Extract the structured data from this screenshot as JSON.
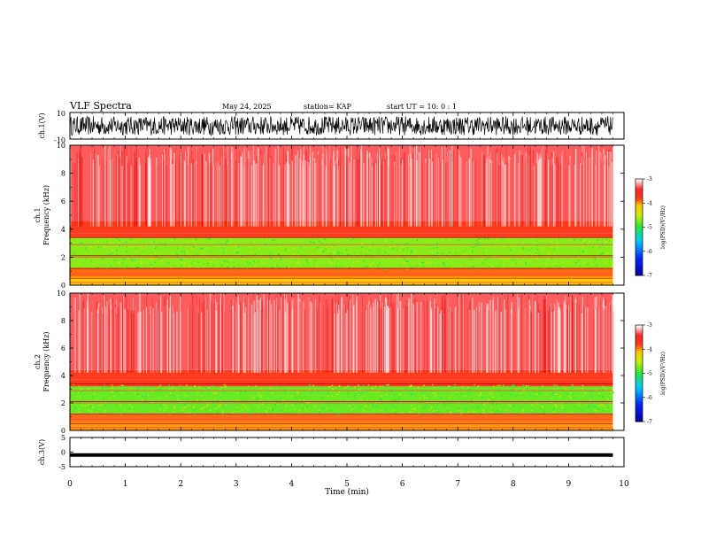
{
  "header": {
    "title": "VLF Spectra",
    "date": "May 24, 2025",
    "station": "station= KAP",
    "start": "start  UT  =   10: 0  : 1"
  },
  "chart_data": [
    {
      "type": "line",
      "title": "",
      "ylabel": "ch.1(V)",
      "ylim": [
        -10,
        10
      ],
      "yticks": [
        "10",
        "-10"
      ],
      "x_range": [
        0,
        9.8
      ],
      "description_values": "dense noise waveform filling roughly -7..+7 V"
    },
    {
      "type": "heatmap",
      "ylabel": "ch.1\nFrequency (kHz)",
      "ylabel_line1": "ch.1",
      "ylabel_line2": "Frequency (kHz)",
      "ylim": [
        0,
        10
      ],
      "yticks": [
        "0",
        "2",
        "4",
        "6",
        "8",
        "10"
      ],
      "x_range": [
        0,
        9.8
      ],
      "colorbar": {
        "label": "log(PSD)(V²/Hz)",
        "ticks": [
          "-3",
          "-4",
          "-5",
          "-6",
          "-7"
        ],
        "range": [
          -7,
          -3
        ]
      },
      "bands": [
        {
          "from_khz": 0,
          "to_khz": 0.6,
          "log_psd": -4.1
        },
        {
          "from_khz": 0.6,
          "to_khz": 1.2,
          "log_psd": -3.9
        },
        {
          "from_khz": 1.2,
          "to_khz": 3.4,
          "log_psd": -4.7
        },
        {
          "from_khz": 3.4,
          "to_khz": 4.6,
          "log_psd": -3.8
        },
        {
          "from_khz": 4.6,
          "to_khz": 10,
          "log_psd": -3.3
        }
      ]
    },
    {
      "type": "heatmap",
      "ylabel_line1": "ch.2",
      "ylabel_line2": "Frequency (kHz)",
      "ylim": [
        0,
        10
      ],
      "yticks": [
        "0",
        "2",
        "4",
        "6",
        "8",
        "10"
      ],
      "x_range": [
        0,
        9.8
      ],
      "colorbar": {
        "label": "log(PSD)(V²/Hz)",
        "ticks": [
          "-3",
          "-4",
          "-5",
          "-6",
          "-7"
        ],
        "range": [
          -7,
          -3
        ]
      },
      "bands": [
        {
          "from_khz": 0,
          "to_khz": 0.6,
          "log_psd": -4.0
        },
        {
          "from_khz": 0.6,
          "to_khz": 1.2,
          "log_psd": -3.9
        },
        {
          "from_khz": 1.2,
          "to_khz": 3.2,
          "log_psd": -4.8
        },
        {
          "from_khz": 3.2,
          "to_khz": 4.4,
          "log_psd": -3.8
        },
        {
          "from_khz": 4.4,
          "to_khz": 10,
          "log_psd": -3.3
        }
      ]
    },
    {
      "type": "line",
      "ylabel": "ch.3(V)",
      "ylim": [
        -5,
        5
      ],
      "yticks": [
        "5",
        "0",
        "-5"
      ],
      "x_range": [
        0,
        9.8
      ],
      "description_values": "flat thick trace near -1 V"
    }
  ],
  "xaxis": {
    "label": "Time (min)",
    "ticks": [
      "0",
      "1",
      "2",
      "3",
      "4",
      "5",
      "6",
      "7",
      "8",
      "9",
      "10"
    ],
    "range": [
      0,
      10
    ]
  },
  "colors": {
    "red": "#ff2020",
    "yellow": "#ffd000",
    "green": "#40e040",
    "blue": "#0020ff",
    "axis": "#000000"
  }
}
